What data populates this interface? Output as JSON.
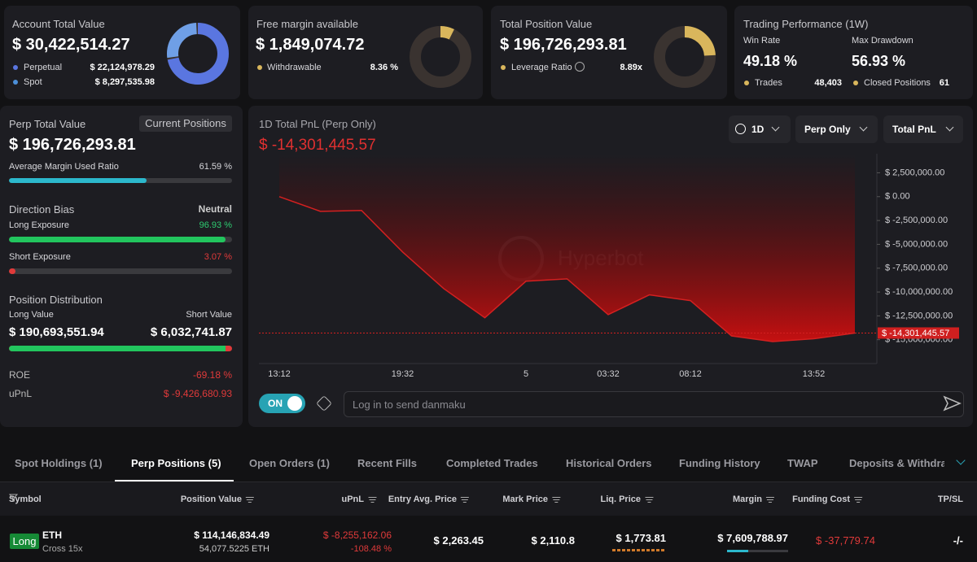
{
  "account": {
    "title": "Account Total Value",
    "value": "$ 30,422,514.27",
    "perpetual_label": "Perpetual",
    "perpetual": "$ 22,124,978.29",
    "spot_label": "Spot",
    "spot": "$ 8,297,535.98"
  },
  "free_margin": {
    "title": "Free margin available",
    "value": "$ 1,849,074.72",
    "withdrawable_label": "Withdrawable",
    "withdrawable": "8.36 %"
  },
  "position_value": {
    "title": "Total Position Value",
    "value": "$ 196,726,293.81",
    "leverage_label": "Leverage Ratio",
    "leverage": "8.89x"
  },
  "performance": {
    "title": "Trading Performance (1W)",
    "win_rate_label": "Win Rate",
    "win_rate": "49.18 %",
    "drawdown_label": "Max Drawdown",
    "drawdown": "56.93 %",
    "trades_label": "Trades",
    "trades": "48,403",
    "closed_label": "Closed Positions",
    "closed": "61"
  },
  "perp": {
    "title": "Perp Total Value",
    "button": "Current Positions",
    "value": "$ 196,726,293.81",
    "margin_label": "Average Margin Used Ratio",
    "margin": "61.59 %",
    "bias_label": "Direction Bias",
    "bias": "Neutral",
    "long_label": "Long Exposure",
    "long": "96.93 %",
    "short_label": "Short Exposure",
    "short": "3.07 %",
    "dist_label": "Position Distribution",
    "long_value_label": "Long Value",
    "short_value_label": "Short Value",
    "long_value": "$ 190,693,551.94",
    "short_value": "$ 6,032,741.87",
    "roe_label": "ROE",
    "roe": "-69.18 %",
    "upnl_label": "uPnL",
    "upnl": "$ -9,426,680.93"
  },
  "chart_data": {
    "type": "area",
    "title": "1D Total PnL (Perp Only)",
    "last_label": "$ -14,301,445.57",
    "categories": [
      "13:12",
      null,
      null,
      "19:32",
      null,
      null,
      "5",
      null,
      "03:32",
      null,
      "08:12",
      null,
      null,
      "13:52",
      null
    ],
    "values": [
      0,
      -1540000,
      -1450000,
      -5800000,
      -9640000,
      -12700000,
      -8870000,
      -8620000,
      -12370000,
      -10300000,
      -10900000,
      -14600000,
      -15200000,
      -14900000,
      -14301445.57
    ],
    "color": "#d42020",
    "ylim": [
      -17500000,
      4500000
    ],
    "yticks": [
      {
        "value": 2500000,
        "label": "$ 2,500,000.00"
      },
      {
        "value": 0,
        "label": "$ 0.00"
      },
      {
        "value": -2500000,
        "label": "$ -2,500,000.00"
      },
      {
        "value": -5000000,
        "label": "$ -5,000,000.00"
      },
      {
        "value": -7500000,
        "label": "$ -7,500,000.00"
      },
      {
        "value": -10000000,
        "label": "$ -10,000,000.00"
      },
      {
        "value": -12500000,
        "label": "$ -12,500,000.00"
      },
      {
        "value": -15000000,
        "label": "$ -15,000,000.00"
      }
    ]
  },
  "controls": {
    "range": "1D",
    "scope": "Perp Only",
    "metric": "Total PnL",
    "toggle": "ON",
    "input_placeholder": "Log in to send danmaku",
    "watermark": "Hyperbot"
  },
  "tabs": [
    "Spot Holdings (1)",
    "Perp Positions (5)",
    "Open Orders (1)",
    "Recent Fills",
    "Completed Trades",
    "Historical Orders",
    "Funding History",
    "TWAP",
    "Deposits & Withdraw"
  ],
  "active_tab": 1,
  "table": {
    "columns": [
      "Symbol",
      "Position Value",
      "uPnL",
      "Entry Avg. Price",
      "Mark Price",
      "Liq. Price",
      "Margin",
      "Funding Cost",
      "TP/SL"
    ],
    "rows": [
      {
        "side": "Long",
        "symbol": "ETH",
        "mode": "Cross 15x",
        "position_value": "$ 114,146,834.49",
        "size": "54,077.5225 ETH",
        "upnl": "$ -8,255,162.06",
        "upnl_pct": "-108.48 %",
        "entry": "$ 2,263.45",
        "mark": "$ 2,110.8",
        "liq": "$ 1,773.81",
        "margin": "$ 7,609,788.97",
        "funding": "$ -37,779.74",
        "tpsl": "-/-"
      }
    ]
  }
}
